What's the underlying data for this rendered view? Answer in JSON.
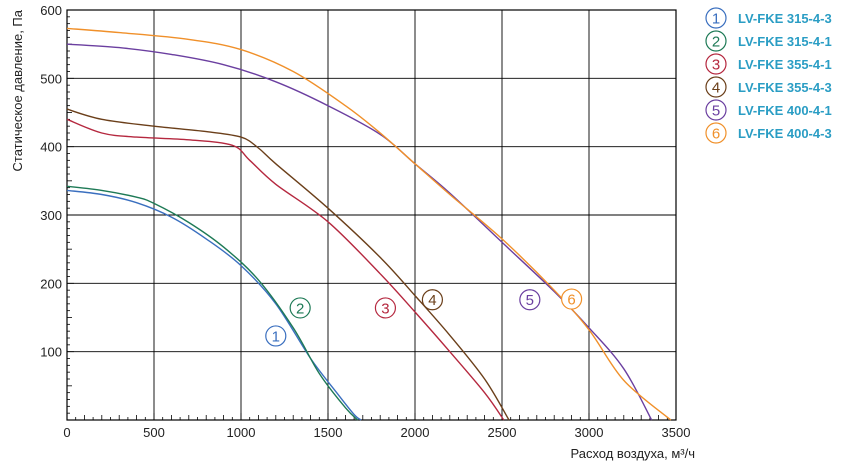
{
  "chart_data": {
    "type": "line",
    "xlabel": "Расход воздуха, м³/ч",
    "ylabel": "Статическое давление, Па",
    "xlim": [
      0,
      3500
    ],
    "ylim": [
      0,
      600
    ],
    "x_ticks": [
      "0",
      "500",
      "1000",
      "1500",
      "2000",
      "2500",
      "3000",
      "3500"
    ],
    "y_ticks": [
      "100",
      "200",
      "300",
      "400",
      "500",
      "600"
    ],
    "grid": true,
    "legend_position": "right",
    "series": [
      {
        "marker": "1",
        "name": "LV-FKE 315-4-3",
        "color": "#3a6fbf",
        "label_at": [
          1200,
          123
        ],
        "points": [
          [
            0,
            336
          ],
          [
            200,
            330
          ],
          [
            400,
            318
          ],
          [
            600,
            297
          ],
          [
            800,
            265
          ],
          [
            1000,
            226
          ],
          [
            1200,
            170
          ],
          [
            1400,
            90
          ],
          [
            1550,
            40
          ],
          [
            1650,
            8
          ],
          [
            1690,
            0
          ]
        ]
      },
      {
        "marker": "2",
        "name": "LV-FKE 315-4-1",
        "color": "#1e7a56",
        "label_at": [
          1340,
          164
        ],
        "points": [
          [
            0,
            342
          ],
          [
            200,
            336
          ],
          [
            400,
            326
          ],
          [
            500,
            317
          ],
          [
            700,
            289
          ],
          [
            900,
            253
          ],
          [
            1100,
            205
          ],
          [
            1300,
            135
          ],
          [
            1450,
            68
          ],
          [
            1600,
            18
          ],
          [
            1670,
            0
          ]
        ]
      },
      {
        "marker": "3",
        "name": "LV-FKE 355-4-1",
        "color": "#b5283f",
        "label_at": [
          1830,
          164
        ],
        "points": [
          [
            0,
            440
          ],
          [
            200,
            420
          ],
          [
            400,
            414
          ],
          [
            700,
            410
          ],
          [
            950,
            402
          ],
          [
            1050,
            380
          ],
          [
            1200,
            345
          ],
          [
            1500,
            290
          ],
          [
            1800,
            214
          ],
          [
            2000,
            158
          ],
          [
            2200,
            100
          ],
          [
            2400,
            40
          ],
          [
            2510,
            0
          ]
        ]
      },
      {
        "marker": "4",
        "name": "LV-FKE 355-4-3",
        "color": "#6b3f1a",
        "label_at": [
          2100,
          176
        ],
        "points": [
          [
            0,
            455
          ],
          [
            200,
            440
          ],
          [
            500,
            430
          ],
          [
            800,
            422
          ],
          [
            1000,
            414
          ],
          [
            1100,
            398
          ],
          [
            1200,
            375
          ],
          [
            1500,
            310
          ],
          [
            1800,
            238
          ],
          [
            2000,
            182
          ],
          [
            2200,
            124
          ],
          [
            2400,
            60
          ],
          [
            2540,
            0
          ]
        ]
      },
      {
        "marker": "5",
        "name": "LV-FKE 400-4-1",
        "color": "#6b3fa0",
        "label_at": [
          2660,
          176
        ],
        "points": [
          [
            0,
            550
          ],
          [
            300,
            545
          ],
          [
            600,
            535
          ],
          [
            900,
            520
          ],
          [
            1200,
            495
          ],
          [
            1500,
            460
          ],
          [
            1800,
            418
          ],
          [
            2000,
            375
          ],
          [
            2200,
            332
          ],
          [
            2500,
            260
          ],
          [
            2800,
            188
          ],
          [
            3000,
            135
          ],
          [
            3200,
            75
          ],
          [
            3360,
            0
          ]
        ]
      },
      {
        "marker": "6",
        "name": "LV-FKE 400-4-3",
        "color": "#f0902a",
        "label_at": [
          2900,
          177
        ],
        "points": [
          [
            0,
            573
          ],
          [
            300,
            567
          ],
          [
            700,
            557
          ],
          [
            1000,
            542
          ],
          [
            1300,
            510
          ],
          [
            1600,
            460
          ],
          [
            1800,
            420
          ],
          [
            2000,
            375
          ],
          [
            2200,
            330
          ],
          [
            2500,
            265
          ],
          [
            2800,
            190
          ],
          [
            3000,
            132
          ],
          [
            3200,
            58
          ],
          [
            3470,
            0
          ]
        ]
      }
    ]
  }
}
